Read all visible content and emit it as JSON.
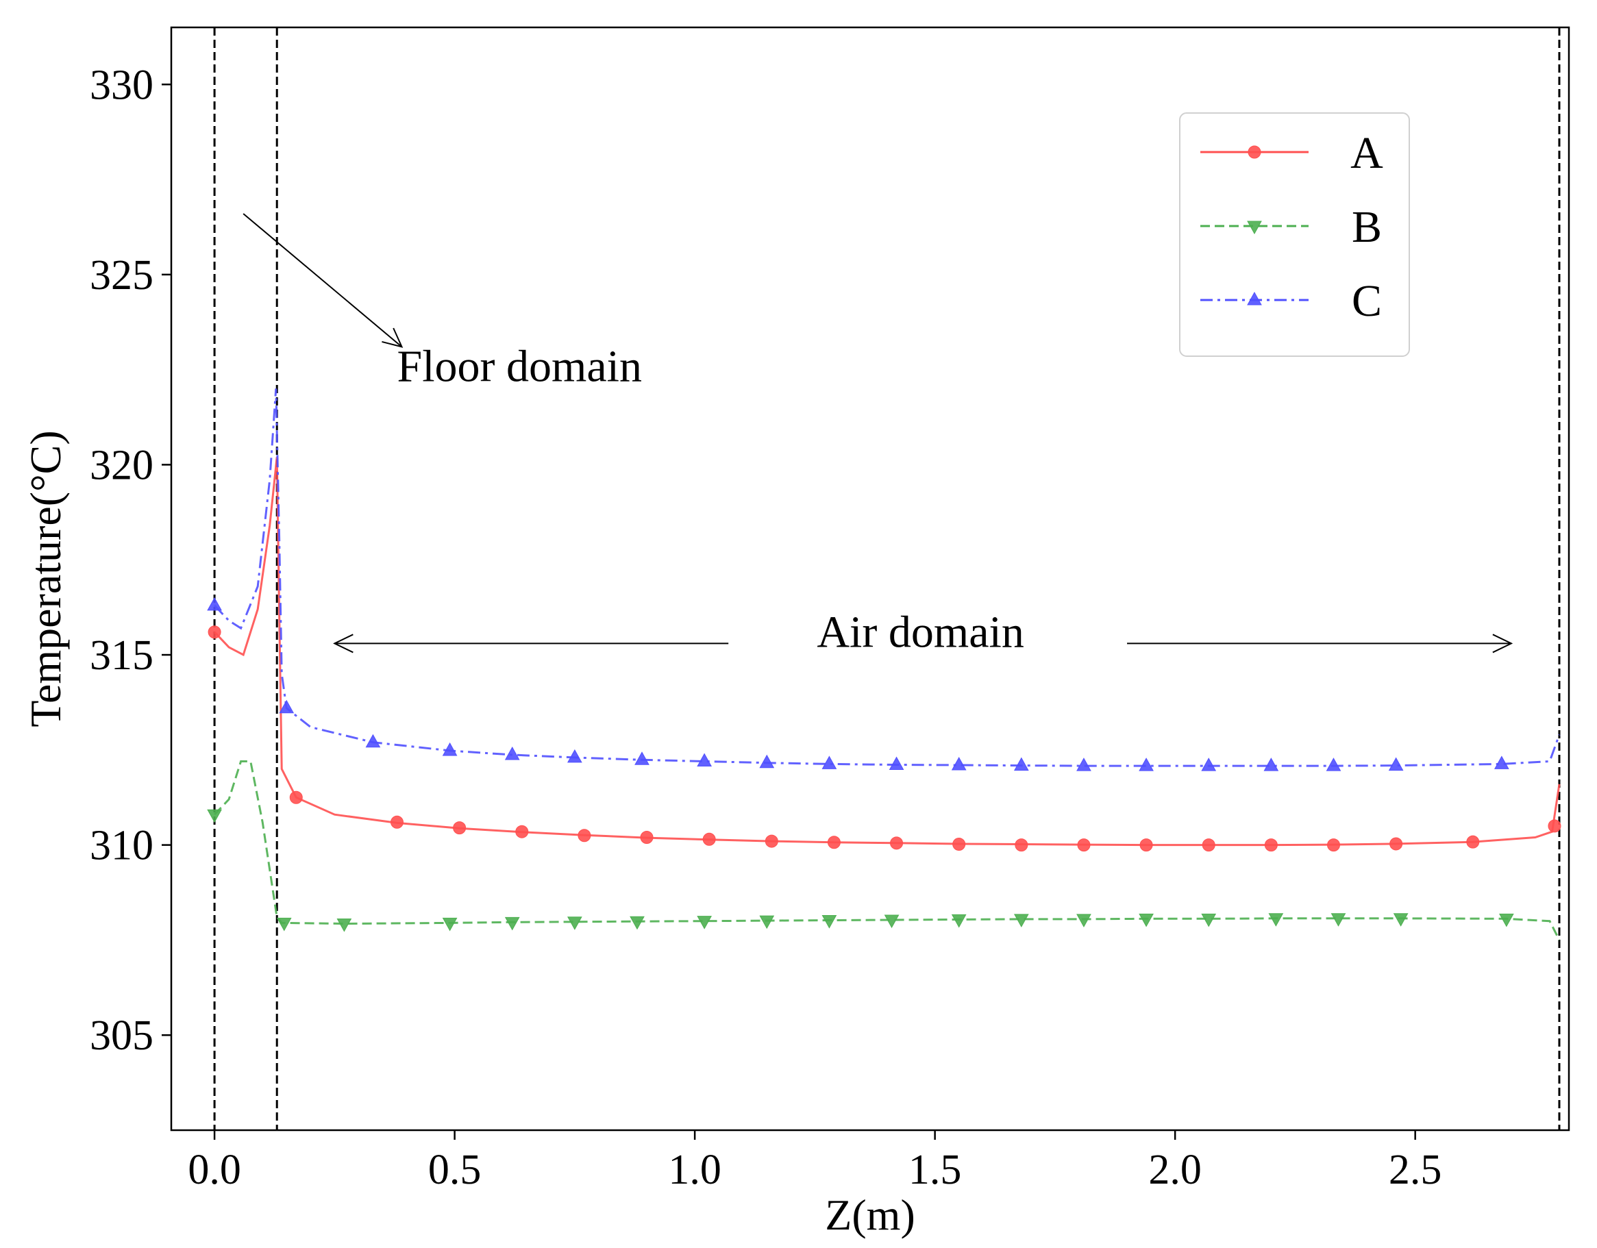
{
  "chart_data": {
    "type": "line",
    "xlabel": "Z(m)",
    "ylabel": "Temperature(°C)",
    "xlim": [
      -0.09,
      2.82
    ],
    "ylim": [
      302.5,
      331.5
    ],
    "xticks": [
      0.0,
      0.5,
      1.0,
      1.5,
      2.0,
      2.5
    ],
    "xtick_labels": [
      "0.0",
      "0.5",
      "1.0",
      "1.5",
      "2.0",
      "2.5"
    ],
    "yticks": [
      305,
      310,
      315,
      320,
      325,
      330
    ],
    "ytick_labels": [
      "305",
      "310",
      "315",
      "320",
      "325",
      "330"
    ],
    "grid": false,
    "legend_position": "top-right",
    "vlines": [
      0.0,
      0.13,
      2.8
    ],
    "annotations": {
      "floor": {
        "text": "Floor domain",
        "x": 0.38,
        "y": 322.2,
        "arrow_from": [
          0.06,
          326.6
        ],
        "arrow_to": [
          0.39,
          323.1
        ]
      },
      "air": {
        "text": "Air domain",
        "x": 1.47,
        "y": 315.6,
        "arrow_left": [
          1.07,
          0.25
        ],
        "arrow_right": [
          1.9,
          2.7
        ],
        "arrow_y": 315.3
      }
    },
    "series": [
      {
        "name": "A",
        "color": "#ff5050",
        "linestyle": "solid",
        "marker": "circle",
        "line": [
          [
            0.0,
            315.6
          ],
          [
            0.03,
            315.2
          ],
          [
            0.06,
            315.0
          ],
          [
            0.09,
            316.2
          ],
          [
            0.115,
            318.4
          ],
          [
            0.13,
            320.2
          ],
          [
            0.135,
            316.0
          ],
          [
            0.14,
            312.0
          ],
          [
            0.17,
            311.25
          ],
          [
            0.25,
            310.8
          ],
          [
            0.38,
            310.58
          ],
          [
            0.51,
            310.44
          ],
          [
            0.64,
            310.34
          ],
          [
            0.77,
            310.26
          ],
          [
            0.9,
            310.19
          ],
          [
            1.03,
            310.14
          ],
          [
            1.16,
            310.1
          ],
          [
            1.29,
            310.07
          ],
          [
            1.42,
            310.05
          ],
          [
            1.55,
            310.03
          ],
          [
            1.68,
            310.02
          ],
          [
            1.81,
            310.01
          ],
          [
            1.94,
            310.0
          ],
          [
            2.07,
            310.0
          ],
          [
            2.2,
            310.0
          ],
          [
            2.33,
            310.01
          ],
          [
            2.45,
            310.03
          ],
          [
            2.62,
            310.08
          ],
          [
            2.75,
            310.2
          ],
          [
            2.785,
            310.35
          ],
          [
            2.8,
            311.6
          ]
        ],
        "markers": [
          [
            0.0,
            315.6
          ],
          [
            0.17,
            311.25
          ],
          [
            0.38,
            310.6
          ],
          [
            0.51,
            310.45
          ],
          [
            0.64,
            310.35
          ],
          [
            0.77,
            310.25
          ],
          [
            0.9,
            310.2
          ],
          [
            1.03,
            310.15
          ],
          [
            1.16,
            310.1
          ],
          [
            1.29,
            310.07
          ],
          [
            1.42,
            310.05
          ],
          [
            1.55,
            310.02
          ],
          [
            1.68,
            310.0
          ],
          [
            1.81,
            310.0
          ],
          [
            1.94,
            310.0
          ],
          [
            2.07,
            310.0
          ],
          [
            2.2,
            310.0
          ],
          [
            2.33,
            310.0
          ],
          [
            2.46,
            310.03
          ],
          [
            2.62,
            310.08
          ],
          [
            2.79,
            310.5
          ]
        ]
      },
      {
        "name": "B",
        "color": "#4caf50",
        "linestyle": "dashed",
        "marker": "triangle-down",
        "line": [
          [
            0.0,
            310.8
          ],
          [
            0.03,
            311.2
          ],
          [
            0.055,
            312.2
          ],
          [
            0.075,
            312.2
          ],
          [
            0.1,
            310.6
          ],
          [
            0.13,
            308.1
          ],
          [
            0.14,
            307.95
          ],
          [
            0.27,
            307.93
          ],
          [
            0.49,
            307.95
          ],
          [
            0.62,
            307.97
          ],
          [
            0.75,
            307.98
          ],
          [
            0.88,
            307.99
          ],
          [
            1.02,
            308.0
          ],
          [
            1.15,
            308.01
          ],
          [
            1.28,
            308.02
          ],
          [
            1.41,
            308.03
          ],
          [
            1.55,
            308.04
          ],
          [
            1.68,
            308.05
          ],
          [
            1.81,
            308.05
          ],
          [
            1.94,
            308.06
          ],
          [
            2.07,
            308.06
          ],
          [
            2.21,
            308.07
          ],
          [
            2.34,
            308.07
          ],
          [
            2.47,
            308.07
          ],
          [
            2.69,
            308.06
          ],
          [
            2.78,
            308.0
          ],
          [
            2.8,
            307.5
          ]
        ],
        "markers": [
          [
            0.0,
            310.8
          ],
          [
            0.145,
            307.95
          ],
          [
            0.27,
            307.93
          ],
          [
            0.49,
            307.95
          ],
          [
            0.62,
            307.97
          ],
          [
            0.75,
            307.98
          ],
          [
            0.88,
            307.99
          ],
          [
            1.02,
            308.0
          ],
          [
            1.15,
            308.01
          ],
          [
            1.28,
            308.02
          ],
          [
            1.41,
            308.03
          ],
          [
            1.55,
            308.04
          ],
          [
            1.68,
            308.05
          ],
          [
            1.81,
            308.05
          ],
          [
            1.94,
            308.06
          ],
          [
            2.07,
            308.06
          ],
          [
            2.21,
            308.07
          ],
          [
            2.34,
            308.07
          ],
          [
            2.47,
            308.07
          ],
          [
            2.69,
            308.06
          ]
        ]
      },
      {
        "name": "C",
        "color": "#5050ff",
        "linestyle": "dashdot",
        "marker": "triangle-up",
        "line": [
          [
            0.0,
            316.3
          ],
          [
            0.03,
            315.9
          ],
          [
            0.055,
            315.7
          ],
          [
            0.09,
            316.8
          ],
          [
            0.115,
            319.6
          ],
          [
            0.128,
            322.0
          ],
          [
            0.135,
            318.0
          ],
          [
            0.14,
            314.5
          ],
          [
            0.15,
            313.6
          ],
          [
            0.2,
            313.1
          ],
          [
            0.33,
            312.7
          ],
          [
            0.49,
            312.48
          ],
          [
            0.62,
            312.37
          ],
          [
            0.75,
            312.3
          ],
          [
            0.89,
            312.24
          ],
          [
            1.02,
            312.2
          ],
          [
            1.15,
            312.16
          ],
          [
            1.28,
            312.13
          ],
          [
            1.42,
            312.11
          ],
          [
            1.55,
            312.1
          ],
          [
            1.68,
            312.09
          ],
          [
            1.81,
            312.08
          ],
          [
            1.94,
            312.08
          ],
          [
            2.07,
            312.08
          ],
          [
            2.2,
            312.08
          ],
          [
            2.33,
            312.08
          ],
          [
            2.46,
            312.09
          ],
          [
            2.68,
            312.13
          ],
          [
            2.78,
            312.2
          ],
          [
            2.8,
            312.9
          ]
        ],
        "markers": [
          [
            0.0,
            316.3
          ],
          [
            0.15,
            313.6
          ],
          [
            0.33,
            312.7
          ],
          [
            0.49,
            312.48
          ],
          [
            0.62,
            312.37
          ],
          [
            0.75,
            312.3
          ],
          [
            0.89,
            312.24
          ],
          [
            1.02,
            312.2
          ],
          [
            1.15,
            312.16
          ],
          [
            1.28,
            312.13
          ],
          [
            1.42,
            312.11
          ],
          [
            1.55,
            312.1
          ],
          [
            1.68,
            312.09
          ],
          [
            1.81,
            312.08
          ],
          [
            1.94,
            312.08
          ],
          [
            2.07,
            312.08
          ],
          [
            2.2,
            312.08
          ],
          [
            2.33,
            312.08
          ],
          [
            2.46,
            312.09
          ],
          [
            2.68,
            312.13
          ]
        ]
      }
    ]
  }
}
